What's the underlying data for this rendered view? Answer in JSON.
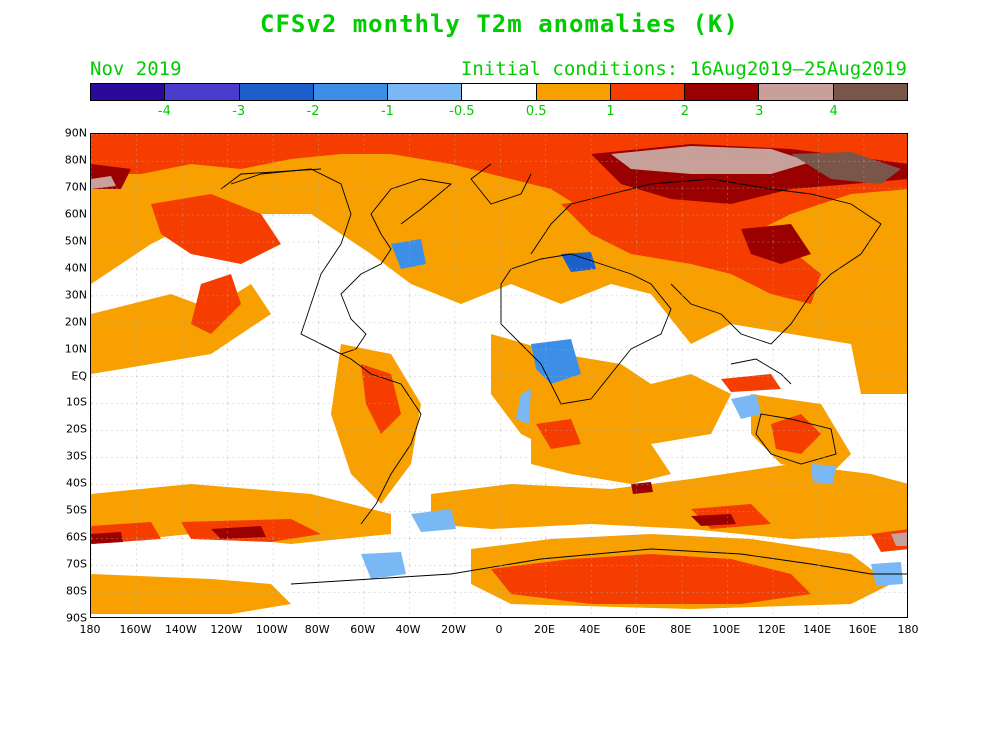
{
  "title": "CFSv2 monthly T2m anomalies (K)",
  "forecast_month": "Nov 2019",
  "initial_conditions": "Initial conditions: 16Aug2019–25Aug2019",
  "colorbar": {
    "colors": [
      "#2a0a9a",
      "#4a3ccc",
      "#1a5fcc",
      "#3d8ee6",
      "#7ab8f5",
      "#ffffff",
      "#f7a000",
      "#f53d00",
      "#9a0000",
      "#c8a09a",
      "#7a554a"
    ],
    "labels": [
      "-4",
      "-3",
      "-2",
      "-1",
      "-0.5",
      "0.5",
      "1",
      "2",
      "3",
      "4"
    ]
  },
  "lat_labels": [
    "90N",
    "80N",
    "70N",
    "60N",
    "50N",
    "40N",
    "30N",
    "20N",
    "10N",
    "EQ",
    "10S",
    "20S",
    "30S",
    "40S",
    "50S",
    "60S",
    "70S",
    "80S",
    "90S"
  ],
  "lon_labels": [
    "180",
    "160W",
    "140W",
    "120W",
    "100W",
    "80W",
    "60W",
    "40W",
    "20W",
    "0",
    "20E",
    "40E",
    "60E",
    "80E",
    "100E",
    "120E",
    "140E",
    "160E",
    "180"
  ]
}
